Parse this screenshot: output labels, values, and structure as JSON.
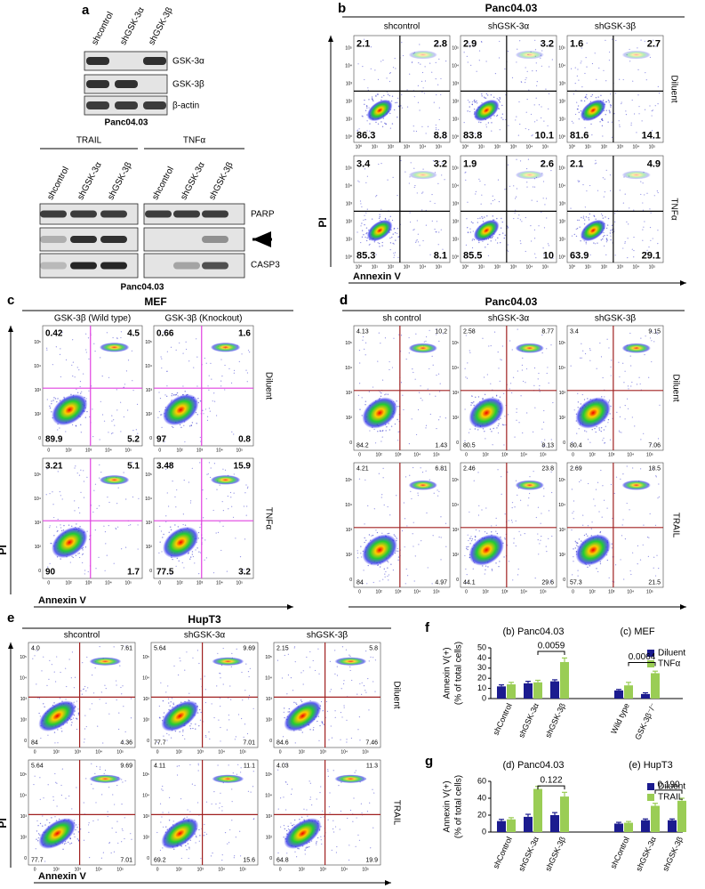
{
  "panel_a": {
    "label": "a",
    "blot1": {
      "lanes": [
        "shcontrol",
        "shGSK-3α",
        "shGSK-3β"
      ],
      "rows": [
        "GSK-3α",
        "GSK-3β",
        "β-actin"
      ],
      "cell_line": "Panc04.03"
    },
    "blot2": {
      "groups": [
        "TRAIL",
        "TNFα"
      ],
      "lanes": [
        "shcontrol",
        "shGSK-3α",
        "shGSK-3β"
      ],
      "rows": [
        "PARP",
        "CASP3"
      ],
      "cell_line": "Panc04.03"
    }
  },
  "panel_b": {
    "label": "b",
    "title": "Panc04.03",
    "columns": [
      "shcontrol",
      "shGSK-3α",
      "shGSK-3β"
    ],
    "rows": [
      "Diluent",
      "TNFα"
    ],
    "y_axis": "PI",
    "x_axis": "Annexin V",
    "ticks": [
      "10⁰",
      "10¹",
      "10²",
      "10³",
      "10⁴",
      "10⁵"
    ],
    "quadrants": [
      [
        [
          "2.1",
          "2.8",
          "86.3",
          "8.8"
        ],
        [
          "2.9",
          "3.2",
          "83.8",
          "10.1"
        ],
        [
          "1.6",
          "2.7",
          "81.6",
          "14.1"
        ]
      ],
      [
        [
          "3.4",
          "3.2",
          "85.3",
          "8.1"
        ],
        [
          "1.9",
          "2.6",
          "85.5",
          "10"
        ],
        [
          "2.1",
          "4.9",
          "63.9",
          "29.1"
        ]
      ]
    ]
  },
  "panel_c": {
    "label": "c",
    "title": "MEF",
    "columns": [
      "GSK-3β (Wild type)",
      "GSK-3β (Knockout)"
    ],
    "rows": [
      "Diluent",
      "TNFα"
    ],
    "y_axis": "PI",
    "x_axis": "Annexin V",
    "ticks": [
      "0",
      "10²",
      "10³",
      "10⁴",
      "10⁵"
    ],
    "quadrants": [
      [
        [
          "0.42",
          "4.5",
          "89.9",
          "5.2"
        ],
        [
          "0.66",
          "1.6",
          "97",
          "0.8"
        ]
      ],
      [
        [
          "3.21",
          "5.1",
          "90",
          "1.7"
        ],
        [
          "3.48",
          "15.9",
          "77.5",
          "3.2"
        ]
      ]
    ]
  },
  "panel_d": {
    "label": "d",
    "title": "Panc04.03",
    "columns": [
      "sh control",
      "shGSK-3α",
      "shGSK-3β"
    ],
    "rows": [
      "Diluent",
      "TRAIL"
    ],
    "ticks": [
      "0",
      "10²",
      "10³",
      "10⁴",
      "10⁵"
    ],
    "quadrants": [
      [
        [
          "4.13",
          "10.2",
          "84.2",
          "1.43"
        ],
        [
          "2.58",
          "8.77",
          "80.5",
          "8.13"
        ],
        [
          "3.4",
          "9.15",
          "80.4",
          "7.06"
        ]
      ],
      [
        [
          "4.21",
          "6.81",
          "84",
          "4.97"
        ],
        [
          "2.46",
          "23.8",
          "44.1",
          "29.6"
        ],
        [
          "2.69",
          "18.5",
          "57.3",
          "21.5"
        ]
      ]
    ]
  },
  "panel_e": {
    "label": "e",
    "title": "HupT3",
    "columns": [
      "shcontrol",
      "shGSK-3α",
      "shGSK-3β"
    ],
    "rows": [
      "Diluent",
      "TRAIL"
    ],
    "y_axis": "PI",
    "x_axis": "Annexin V",
    "ticks": [
      "0",
      "10²",
      "10³",
      "10⁴",
      "10⁵"
    ],
    "quadrants": [
      [
        [
          "4.0",
          "7.61",
          "84",
          "4.36"
        ],
        [
          "5.64",
          "9.69",
          "77.7",
          "7.01"
        ],
        [
          "2.15",
          "5.8",
          "84.6",
          "7.46"
        ]
      ],
      [
        [
          "5.64",
          "9.69",
          "77.7",
          "7.01"
        ],
        [
          "4.11",
          "11.1",
          "69.2",
          "15.6"
        ],
        [
          "4.03",
          "11.3",
          "64.8",
          "19.9"
        ]
      ]
    ]
  },
  "chart_data": [
    {
      "type": "bar",
      "label": "f",
      "group_labels": [
        "(b) Panc04.03",
        "(c) MEF"
      ],
      "y_label": [
        "Annexin V(+)",
        "(% of total cells)"
      ],
      "categories": [
        "shControl",
        "shGSK-3α",
        "shGSK-3β",
        "Wild type",
        "GSK-3β⁻/⁻"
      ],
      "series": [
        {
          "name": "Diluent",
          "color": "#1b1b8f",
          "values": [
            12,
            15,
            17,
            8,
            4.5
          ],
          "errors": [
            1.5,
            2,
            1.5,
            1,
            1.2
          ]
        },
        {
          "name": "TNFα",
          "color": "#9acd55",
          "values": [
            14,
            16,
            36,
            13,
            25
          ],
          "errors": [
            2,
            2,
            4,
            3,
            2
          ]
        }
      ],
      "ylim": [
        0,
        50
      ],
      "yticks": [
        0,
        10,
        20,
        30,
        40,
        50
      ],
      "annotations": [
        "0.0059",
        "0.0064"
      ]
    },
    {
      "type": "bar",
      "label": "g",
      "group_labels": [
        "(d) Panc04.03",
        "(e) HupT3"
      ],
      "y_label": [
        "Annexin V(+)",
        "(% of total cells)"
      ],
      "categories": [
        "shControl",
        "shGSK-3α",
        "shGSK-3β",
        "shControl",
        "shGSK-3α",
        "shGSK-3β"
      ],
      "series": [
        {
          "name": "Diluent",
          "color": "#1b1b8f",
          "values": [
            13,
            18,
            20,
            10,
            14,
            14
          ],
          "errors": [
            2,
            3,
            3,
            1.5,
            1.5,
            1.5
          ]
        },
        {
          "name": "TRAIL",
          "color": "#9acd55",
          "values": [
            15,
            51,
            42,
            11,
            31,
            37
          ],
          "errors": [
            2,
            3,
            5,
            1.5,
            3,
            3
          ]
        }
      ],
      "ylim": [
        0,
        60
      ],
      "yticks": [
        0,
        20,
        40,
        60
      ],
      "annotations": [
        "0.122",
        "0.190"
      ]
    }
  ]
}
